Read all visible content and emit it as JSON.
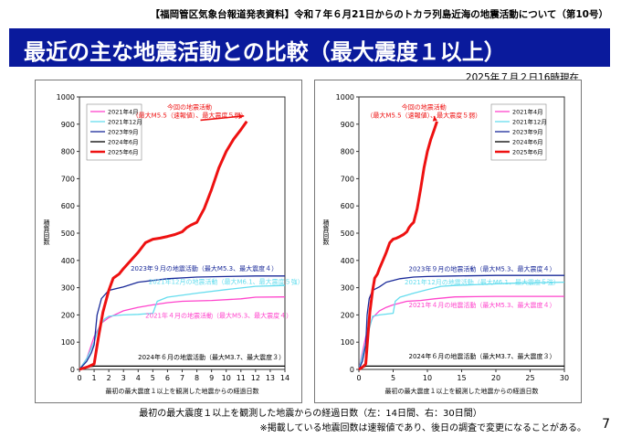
{
  "header": {
    "text": "【福岡管区気象台報道発表資料】令和７年６月21日からのトカラ列島近海の地震活動について（第10号）"
  },
  "title": "最近の主な地震活動との比較（最大震度１以上）",
  "timestamp": "2025年７月２日16時現在",
  "caption": "最初の最大震度１以上を観測した地震からの経過日数（左：14日間、右：30日間）",
  "footnote": "※掲載している地震回数は速報値であり、後日の調査で変更になることがある。",
  "page_number": "7",
  "colors": {
    "title_bg": "#0a1a9c",
    "s2021": "#ff44cc",
    "s2021dec": "#66ddee",
    "s2023": "#1a2a99",
    "s2024": "#000000",
    "s2025": "#ee1111"
  },
  "chart_data": [
    {
      "type": "line",
      "panel": "left",
      "xlim": [
        0,
        14
      ],
      "ylim": [
        0,
        1000
      ],
      "xticks": [
        "0",
        "1",
        "2",
        "3",
        "4",
        "5",
        "6",
        "7",
        "8",
        "9",
        "10",
        "11",
        "12",
        "13",
        "14"
      ],
      "yticks": [
        "0",
        "100",
        "200",
        "300",
        "400",
        "500",
        "600",
        "700",
        "800",
        "900",
        "1000"
      ],
      "ylabel": "積算回数",
      "xlabel": "最初の最大震度１以上を観測した地震からの経過日数",
      "legend_position": "top-left",
      "series": [
        {
          "name": "2021年4月",
          "color_key": "s2021",
          "width": 1.3,
          "x": [
            0,
            0.5,
            1,
            1.5,
            2,
            3,
            4,
            5,
            6,
            7,
            9,
            11,
            12,
            14
          ],
          "y": [
            0,
            40,
            120,
            170,
            190,
            215,
            228,
            237,
            245,
            250,
            253,
            259,
            265,
            266
          ]
        },
        {
          "name": "2021年12月",
          "color_key": "s2021dec",
          "width": 1.3,
          "x": [
            0,
            0.5,
            1,
            1.3,
            1.7,
            2,
            2.5,
            3,
            4,
            5,
            5.3,
            6,
            8,
            10,
            12,
            14
          ],
          "y": [
            0,
            40,
            100,
            150,
            185,
            195,
            198,
            200,
            202,
            206,
            250,
            265,
            280,
            293,
            305,
            308
          ]
        },
        {
          "name": "2023年9月",
          "color_key": "s2023",
          "width": 1.3,
          "x": [
            0,
            0.5,
            0.8,
            1,
            1.2,
            1.5,
            2,
            3,
            4,
            6,
            8,
            10,
            12,
            14
          ],
          "y": [
            0,
            30,
            60,
            90,
            200,
            260,
            290,
            303,
            320,
            333,
            339,
            341,
            343,
            343
          ]
        },
        {
          "name": "2024年6月",
          "color_key": "s2024",
          "width": 1.3,
          "x": [
            0,
            0.3,
            0.7,
            1,
            14
          ],
          "y": [
            0,
            6,
            10,
            12,
            12
          ]
        },
        {
          "name": "2025年6月",
          "color_key": "s2025",
          "width": 3,
          "x": [
            0,
            0.3,
            0.6,
            1,
            1.3,
            1.6,
            2,
            2.3,
            2.7,
            3,
            3.5,
            4,
            4.5,
            5,
            5.5,
            6,
            6.5,
            7,
            7.3,
            7.6,
            8,
            8.5,
            9,
            9.5,
            10,
            10.5,
            11,
            11.4
          ],
          "y": [
            0,
            5,
            10,
            20,
            120,
            210,
            290,
            335,
            350,
            370,
            400,
            430,
            465,
            478,
            482,
            488,
            495,
            505,
            520,
            530,
            540,
            590,
            660,
            740,
            800,
            845,
            880,
            910
          ]
        }
      ],
      "annotations": [
        {
          "lines": [
            "今回の地震活動",
            "（最大M5.5（速報値）、最大震度５弱）"
          ],
          "color_key": "s2025",
          "x": 7.5,
          "y": 955
        },
        {
          "lines": [
            "2023年９月の地震活動（最大M5.3、最大震度４）"
          ],
          "color_key": "s2023",
          "x": 8.5,
          "y": 363
        },
        {
          "lines": [
            "2021年12月の地震活動（最大M6.1、最大震度５強）"
          ],
          "color_key": "s2021dec",
          "x": 10,
          "y": 313
        },
        {
          "lines": [
            "2021年４月の地震活動（最大M5.3、最大震度４）"
          ],
          "color_key": "s2021",
          "x": 9.5,
          "y": 190
        },
        {
          "lines": [
            "2024年６月の地震活動（最大M3.7、最大震度３）"
          ],
          "color_key": "s2024",
          "x": 9,
          "y": 37
        }
      ]
    },
    {
      "type": "line",
      "panel": "right",
      "xlim": [
        0,
        30
      ],
      "ylim": [
        0,
        1000
      ],
      "xticks": [
        "0",
        "5",
        "10",
        "15",
        "20",
        "25",
        "30"
      ],
      "yticks": [
        "0",
        "100",
        "200",
        "300",
        "400",
        "500",
        "600",
        "700",
        "800",
        "900",
        "1000"
      ],
      "ylabel": "積算回数",
      "xlabel": "最初の最大震度１以上を観測した地震からの経過日数",
      "legend_position": "top-right",
      "series": [
        {
          "name": "2021年4月",
          "color_key": "s2021",
          "width": 1.3,
          "x": [
            0,
            1,
            2,
            3,
            4,
            5,
            7,
            9,
            11,
            14,
            17,
            20,
            25,
            30
          ],
          "y": [
            0,
            120,
            190,
            215,
            228,
            237,
            250,
            253,
            259,
            266,
            267,
            268,
            268,
            268
          ]
        },
        {
          "name": "2021年12月",
          "color_key": "s2021dec",
          "width": 1.3,
          "x": [
            0,
            1,
            2,
            3,
            5,
            5.3,
            6,
            8,
            10,
            12,
            14,
            18,
            22,
            26,
            30
          ],
          "y": [
            0,
            100,
            195,
            200,
            206,
            250,
            265,
            280,
            293,
            305,
            308,
            312,
            316,
            318,
            320
          ]
        },
        {
          "name": "2023年9月",
          "color_key": "s2023",
          "width": 1.3,
          "x": [
            0,
            0.5,
            1,
            1.2,
            1.5,
            2,
            3,
            4,
            6,
            8,
            10,
            14,
            20,
            30
          ],
          "y": [
            0,
            30,
            90,
            200,
            260,
            290,
            303,
            320,
            333,
            339,
            341,
            343,
            345,
            345
          ]
        },
        {
          "name": "2024年6月",
          "color_key": "s2024",
          "width": 1.3,
          "x": [
            0,
            0.5,
            1,
            30
          ],
          "y": [
            0,
            7,
            12,
            12
          ]
        },
        {
          "name": "2025年6月",
          "color_key": "s2025",
          "width": 3,
          "x": [
            0,
            0.3,
            0.6,
            1,
            1.3,
            1.6,
            2,
            2.3,
            2.7,
            3,
            3.5,
            4,
            4.5,
            5,
            5.5,
            6,
            6.5,
            7,
            7.3,
            7.6,
            8,
            8.5,
            9,
            9.5,
            10,
            10.5,
            11,
            11.4
          ],
          "y": [
            0,
            5,
            10,
            20,
            120,
            210,
            290,
            335,
            350,
            370,
            400,
            430,
            465,
            478,
            482,
            488,
            495,
            505,
            520,
            530,
            540,
            590,
            660,
            740,
            800,
            845,
            880,
            910
          ]
        }
      ],
      "annotations": [
        {
          "lines": [
            "今回の地震活動",
            "（最大M5.5（速報値）、最大震度５弱）"
          ],
          "color_key": "s2025",
          "x": 9.5,
          "y": 955
        },
        {
          "lines": [
            "2023年９月の地震活動（最大M5.3、最大震度４）"
          ],
          "color_key": "s2023",
          "x": 18,
          "y": 360
        },
        {
          "lines": [
            "2021年12月の地震活動（最大M6.1、最大震度５強）"
          ],
          "color_key": "s2021dec",
          "x": 18,
          "y": 312
        },
        {
          "lines": [
            "2021年４月の地震活動（最大M5.3、最大震度４）"
          ],
          "color_key": "s2021",
          "x": 18,
          "y": 228
        },
        {
          "lines": [
            "2024年６月の地震活動（最大M3.7、最大震度３）"
          ],
          "color_key": "s2024",
          "x": 18,
          "y": 40
        }
      ]
    }
  ]
}
